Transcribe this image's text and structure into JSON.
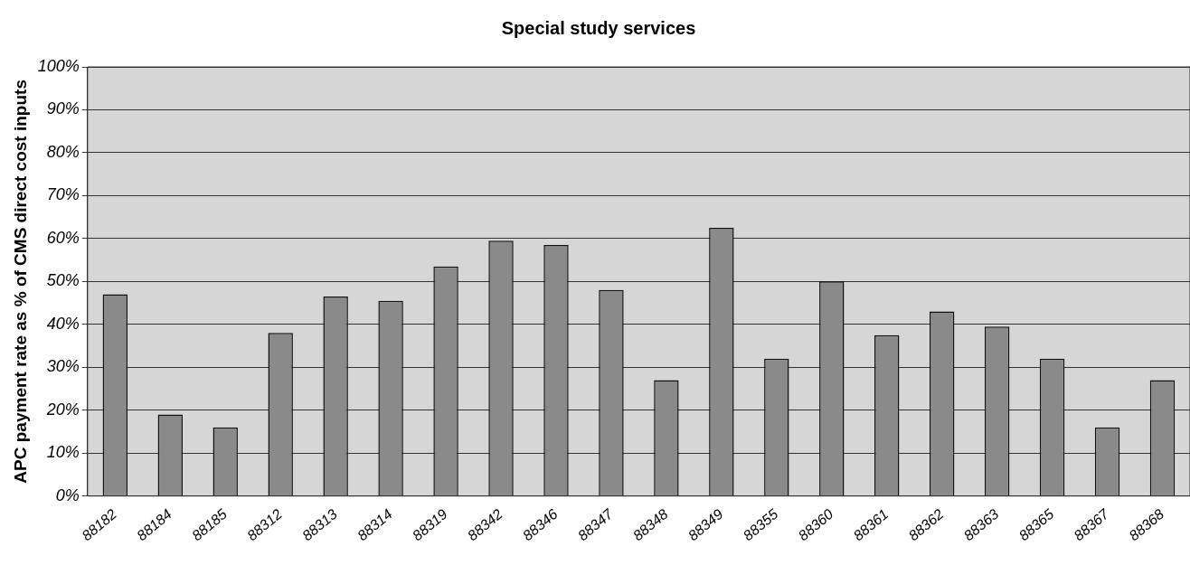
{
  "chart_data": {
    "type": "bar",
    "title": "Special study services",
    "ylabel": "APC payment rate as % of CMS direct cost inputs",
    "categories": [
      "88182",
      "88184",
      "88185",
      "88312",
      "88313",
      "88314",
      "88319",
      "88342",
      "88346",
      "88347",
      "88348",
      "88349",
      "88355",
      "88360",
      "88361",
      "88362",
      "88363",
      "88365",
      "88367",
      "88368"
    ],
    "values": [
      47,
      19,
      16,
      38,
      46.5,
      45.5,
      53.5,
      59.5,
      58.5,
      48,
      27,
      62.5,
      32,
      50,
      37.5,
      43,
      39.5,
      32,
      16,
      27
    ],
    "color": "#8a8a8a",
    "ylim": [
      0,
      100
    ],
    "yticks": [
      {
        "value": 0,
        "label": "0%"
      },
      {
        "value": 10,
        "label": "10%"
      },
      {
        "value": 20,
        "label": "20%"
      },
      {
        "value": 30,
        "label": "30%"
      },
      {
        "value": 40,
        "label": "40%"
      },
      {
        "value": 50,
        "label": "50%"
      },
      {
        "value": 60,
        "label": "60%"
      },
      {
        "value": 70,
        "label": "70%"
      },
      {
        "value": 80,
        "label": "80%"
      },
      {
        "value": 90,
        "label": "90%"
      },
      {
        "value": 100,
        "label": "100%"
      }
    ],
    "grid": "y",
    "legend": false
  }
}
